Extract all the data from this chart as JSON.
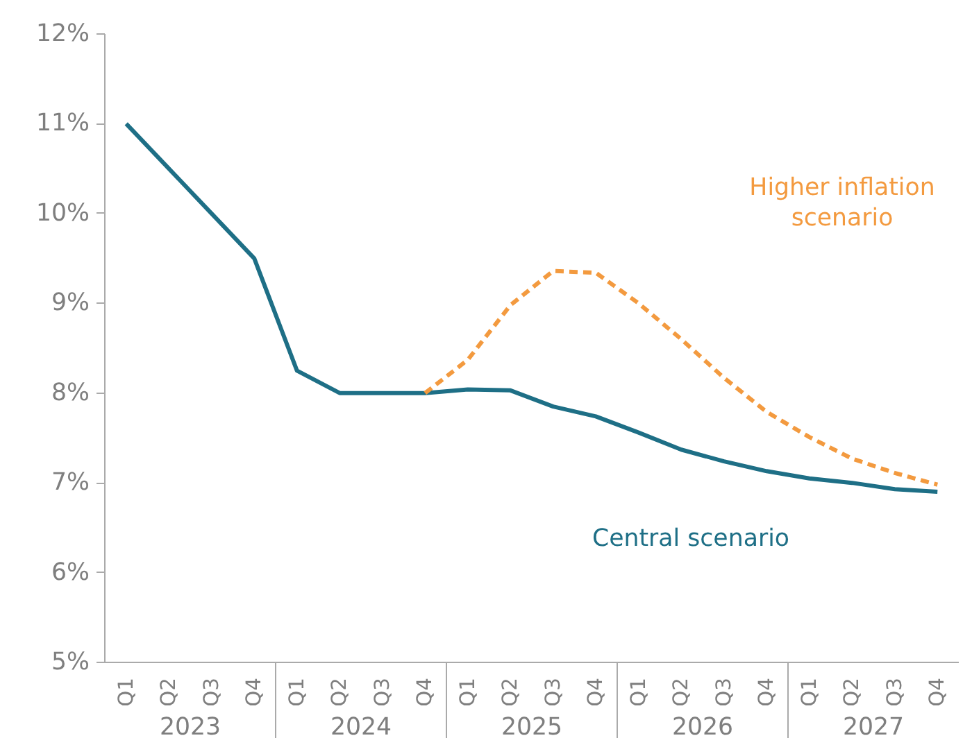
{
  "chart_data": {
    "type": "line",
    "categories": [
      "Q1",
      "Q2",
      "Q3",
      "Q4",
      "Q1",
      "Q2",
      "Q3",
      "Q4",
      "Q1",
      "Q2",
      "Q3",
      "Q4",
      "Q1",
      "Q2",
      "Q3",
      "Q4",
      "Q1",
      "Q2",
      "Q3",
      "Q4"
    ],
    "annotations": [
      "2023",
      "2024",
      "2025",
      "2026",
      "2027"
    ],
    "series": [
      {
        "name": "Central scenario",
        "color": "#1e6f86",
        "line_style": "solid",
        "values": [
          11.0,
          10.5,
          10.0,
          9.5,
          8.25,
          8.0,
          8.0,
          8.0,
          8.04,
          8.03,
          7.85,
          7.74,
          7.56,
          7.37,
          7.24,
          7.13,
          7.05,
          7.0,
          6.93,
          6.9
        ]
      },
      {
        "name": "Higher inflation scenario",
        "color": "#f39a3f",
        "line_style": "dashed",
        "values": [
          null,
          null,
          null,
          null,
          null,
          null,
          null,
          8.0,
          8.37,
          8.98,
          9.36,
          9.34,
          9.0,
          8.6,
          8.17,
          7.79,
          7.51,
          7.27,
          7.11,
          6.98
        ]
      }
    ],
    "ylim": [
      5,
      12
    ],
    "yticks": [
      {
        "value": 5,
        "label": "5%"
      },
      {
        "value": 6,
        "label": "6%"
      },
      {
        "value": 7,
        "label": "7%"
      },
      {
        "value": 8,
        "label": "8%"
      },
      {
        "value": 9,
        "label": "9%"
      },
      {
        "value": 10,
        "label": "10%"
      },
      {
        "value": 11,
        "label": "11%"
      },
      {
        "value": 12,
        "label": "12%"
      }
    ],
    "grid": false,
    "marker": "none"
  }
}
